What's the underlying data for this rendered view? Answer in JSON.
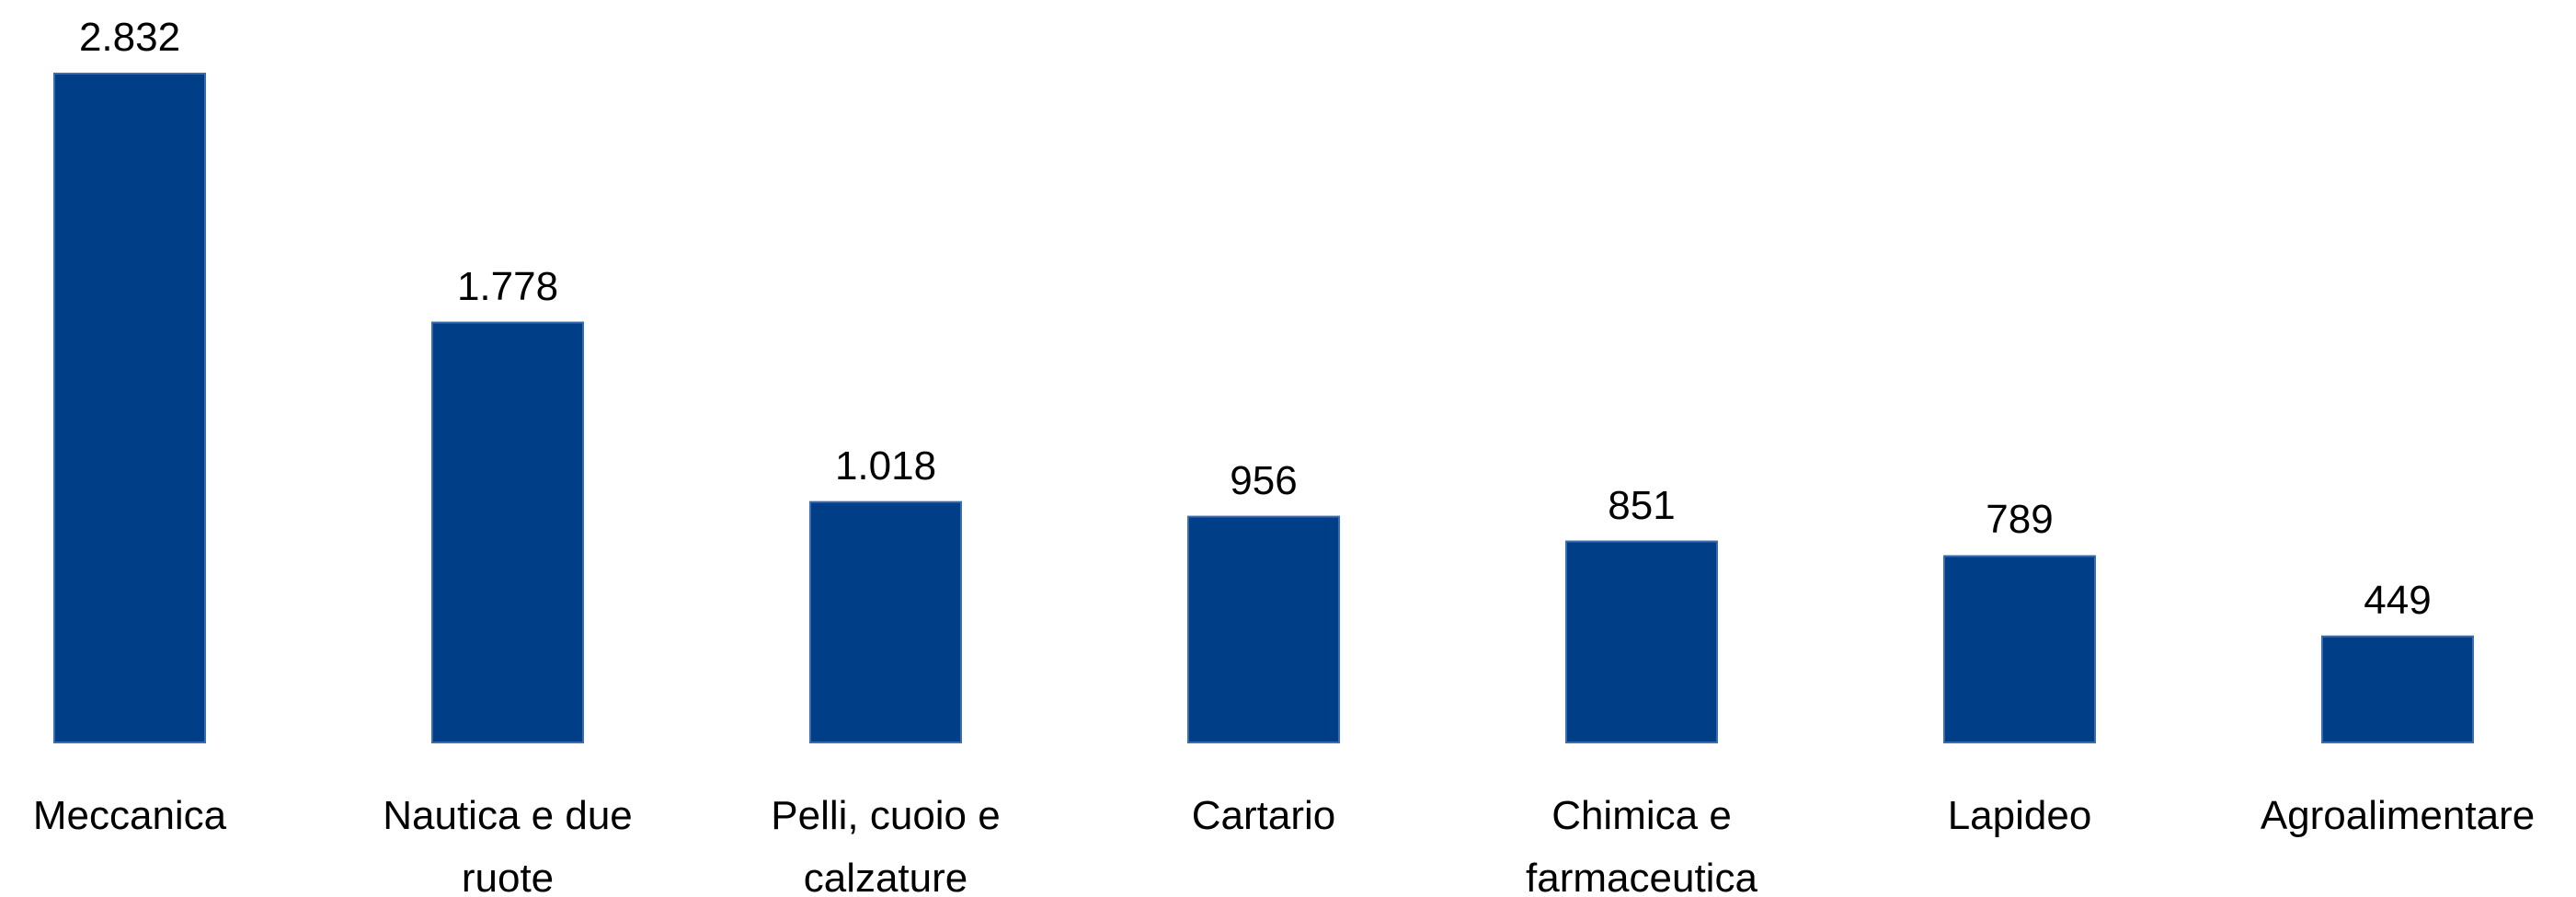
{
  "chart_data": {
    "type": "bar",
    "categories": [
      "Meccanica",
      "Nautica e due ruote",
      "Pelli, cuoio e calzature",
      "Cartario",
      "Chimica e farmaceutica",
      "Lapideo",
      "Agroalimentare"
    ],
    "values": [
      2832,
      1778,
      1018,
      956,
      851,
      789,
      449
    ],
    "value_labels": [
      "2.832",
      "1.778",
      "1.018",
      "956",
      "851",
      "789",
      "449"
    ],
    "color": "#003f87"
  }
}
